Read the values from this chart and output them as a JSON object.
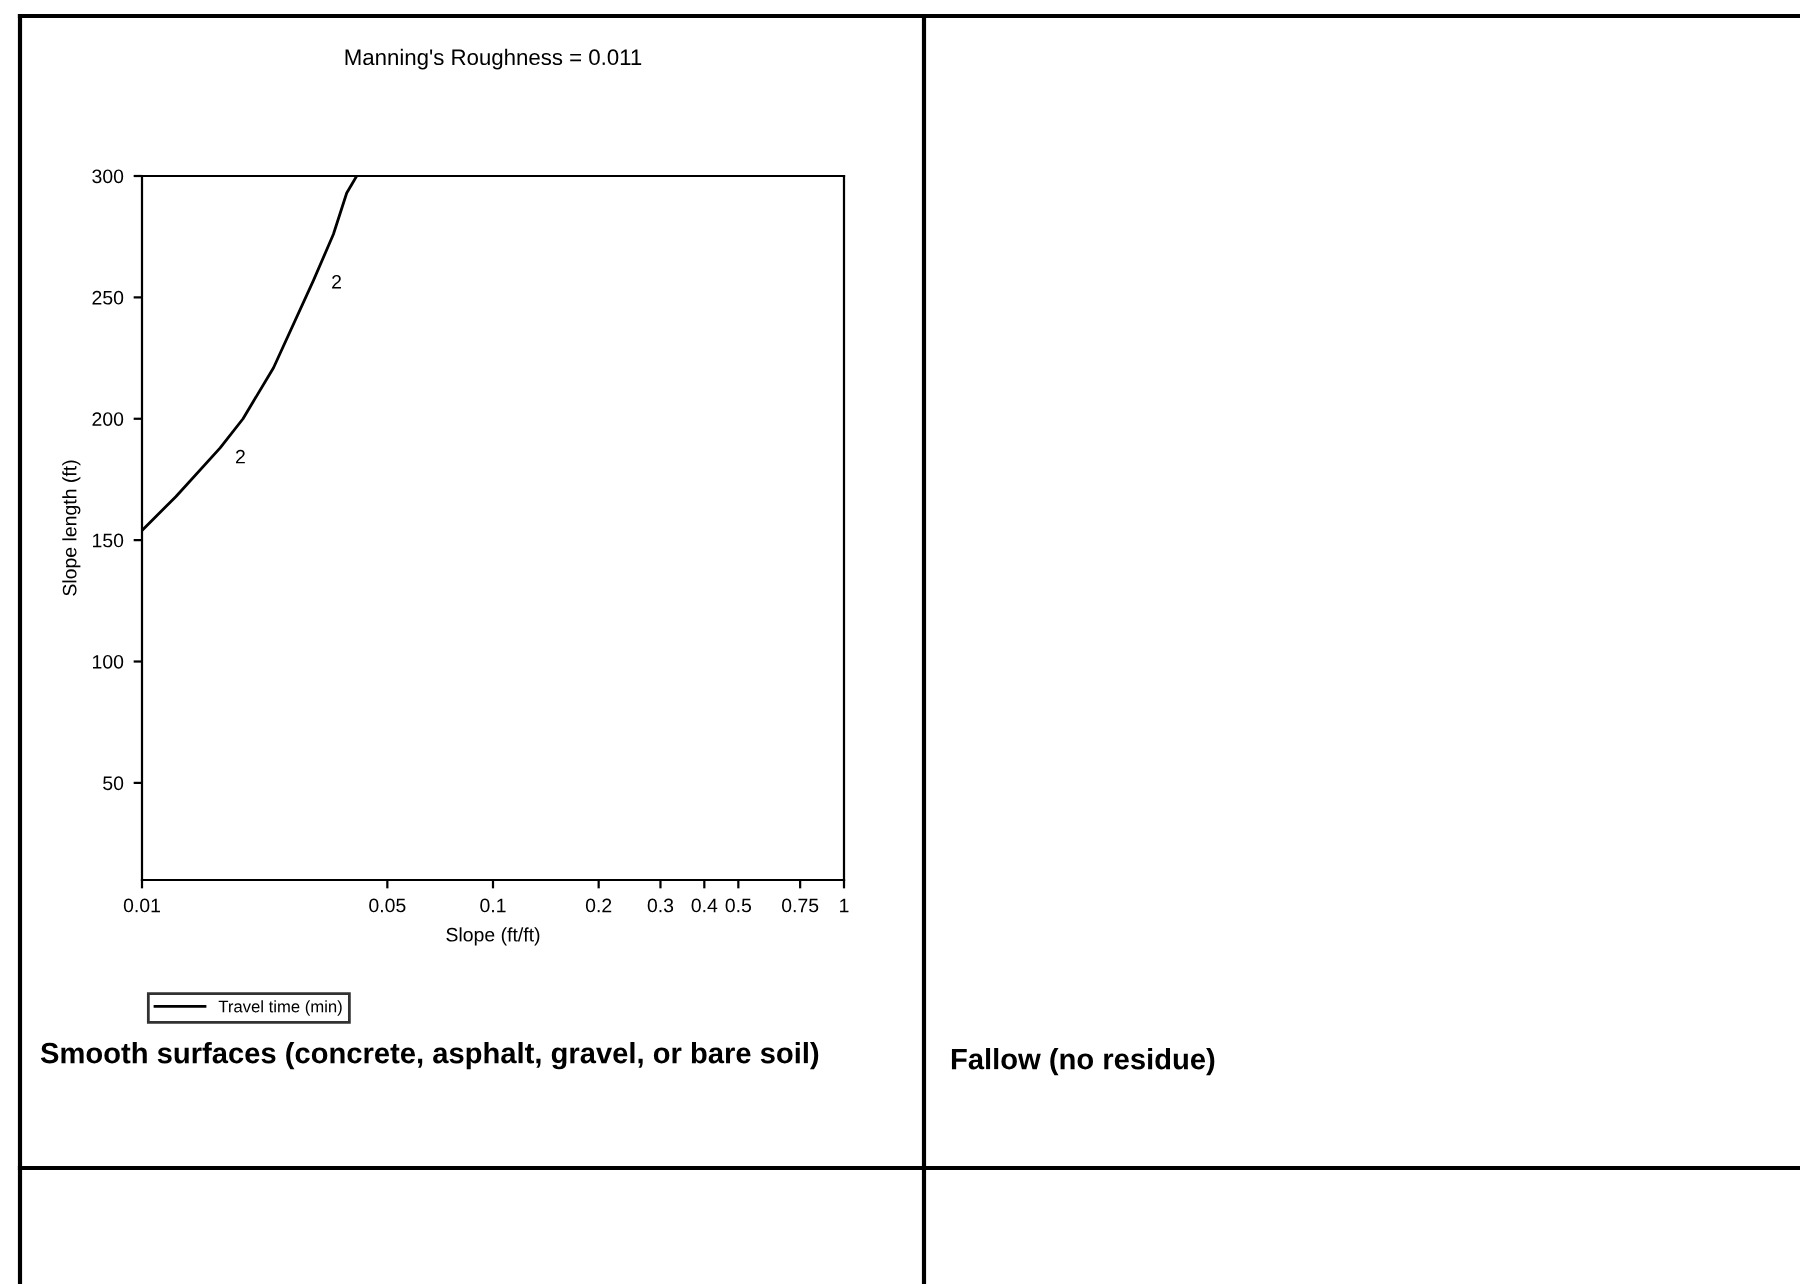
{
  "chart_data": {
    "type": "line",
    "title": "Manning's Roughness = 0.011",
    "xlabel": "Slope (ft/ft)",
    "ylabel": "Slope length (ft)",
    "log": "x",
    "xlim": [
      0.01,
      1
    ],
    "xticks": [
      0.01,
      0.05,
      0.1,
      0.2,
      0.3,
      0.4,
      0.5,
      0.75,
      1
    ],
    "ylim": [
      10,
      300
    ],
    "yticks": [
      50,
      100,
      150,
      200,
      250,
      300
    ],
    "grid": false,
    "legend": "bottom",
    "marker": "none",
    "line_style": "solid",
    "series": [
      {
        "name": "Travel time (min)",
        "color": "#000000",
        "x": [
          0.01,
          0.0125,
          0.0167,
          0.0194,
          0.0237,
          0.0308,
          0.0351,
          0.0383,
          0.0409
        ],
        "values": [
          154,
          168,
          188,
          200,
          221,
          257,
          276,
          293,
          300
        ]
      }
    ],
    "annotations": [
      {
        "text": "2",
        "x": 0.0165,
        "y": 186
      },
      {
        "text": "2",
        "x": 0.031,
        "y": 258
      },
      "Smooth surfaces (concrete, asphalt, gravel, or bare soil)",
      "Fallow (no residue)"
    ]
  }
}
